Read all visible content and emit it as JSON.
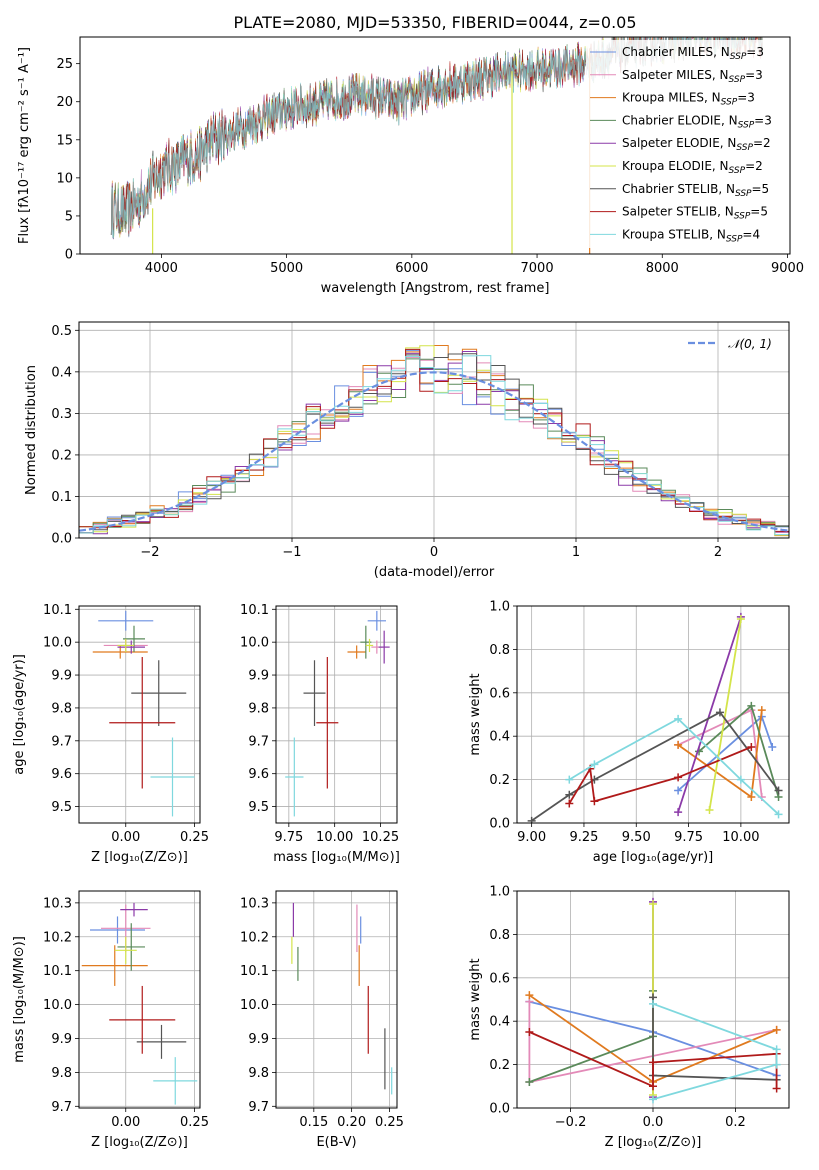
{
  "series_colors": {
    "chabrier_miles": "#6a8fe0",
    "salpeter_miles": "#e38ab8",
    "kroupa_miles": "#e07a1f",
    "chabrier_elodie": "#5a8a5a",
    "salpeter_elodie": "#8b3aa8",
    "kroupa_elodie": "#d4e44a",
    "chabrier_stelib": "#555555",
    "salpeter_stelib": "#b01a1a",
    "kroupa_stelib": "#7fd8de"
  },
  "chart_data": [
    {
      "id": "spectrum",
      "type": "line",
      "title": "PLATE=2080, MJD=53350, FIBERID=0044, z=0.05",
      "xlabel": "wavelength [Angstrom, rest frame]",
      "ylabel": "Flux [fλ10⁻¹⁷ erg cm⁻² s⁻¹ A⁻¹]",
      "xlim": [
        3350,
        9020
      ],
      "ylim": [
        0,
        28.5
      ],
      "xticks": [
        "4000",
        "5000",
        "6000",
        "7000",
        "8000",
        "9000"
      ],
      "yticks": [
        "0",
        "5",
        "10",
        "15",
        "20",
        "25"
      ],
      "grid": false,
      "legend_position": "top-right",
      "legend": [
        {
          "label": "Chabrier MILES, N",
          "sub": "SSP",
          "tail": "=3",
          "color": "#6a8fe0"
        },
        {
          "label": "Salpeter MILES, N",
          "sub": "SSP",
          "tail": "=3",
          "color": "#e38ab8"
        },
        {
          "label": "Kroupa MILES, N",
          "sub": "SSP",
          "tail": "=3",
          "color": "#e07a1f"
        },
        {
          "label": "Chabrier ELODIE, N",
          "sub": "SSP",
          "tail": "=3",
          "color": "#5a8a5a"
        },
        {
          "label": "Salpeter ELODIE, N",
          "sub": "SSP",
          "tail": "=2",
          "color": "#8b3aa8"
        },
        {
          "label": "Kroupa ELODIE, N",
          "sub": "SSP",
          "tail": "=2",
          "color": "#d4e44a"
        },
        {
          "label": "Chabrier STELIB, N",
          "sub": "SSP",
          "tail": "=5",
          "color": "#555555"
        },
        {
          "label": "Salpeter STELIB, N",
          "sub": "SSP",
          "tail": "=5",
          "color": "#b01a1a"
        },
        {
          "label": "Kroupa STELIB, N",
          "sub": "SSP",
          "tail": "=4",
          "color": "#7fd8de"
        }
      ],
      "continuum": {
        "x": [
          3600,
          3700,
          3800,
          3900,
          4000,
          4100,
          4200,
          4300,
          4400,
          4500,
          4700,
          5000,
          5300,
          5600,
          5900,
          6200,
          6500,
          6800,
          7100,
          7400,
          7700,
          8000,
          8300,
          8600,
          8800
        ],
        "y": [
          6,
          5.5,
          6.5,
          9,
          11,
          11.5,
          12.5,
          13,
          15,
          15.5,
          17,
          19,
          20,
          21,
          20,
          22,
          23,
          24,
          24.5,
          25,
          27,
          28,
          28.5,
          28.5,
          28.5
        ]
      }
    },
    {
      "id": "residuals",
      "type": "histogram",
      "xlabel": "(data-model)/error",
      "ylabel": "Normed distribution",
      "xlim": [
        -2.5,
        2.5
      ],
      "ylim": [
        0,
        0.52
      ],
      "xticks": [
        "−2",
        "−1",
        "0",
        "1",
        "2"
      ],
      "yticks": [
        "0.0",
        "0.1",
        "0.2",
        "0.3",
        "0.4",
        "0.5"
      ],
      "grid": true,
      "legend_position": "top-right",
      "reference_label": "𝒩(0, 1)",
      "reference_color": "#6a8fe0",
      "bin_width": 0.1
    },
    {
      "id": "age-vs-Z",
      "type": "errorbar",
      "xlabel": "Z [log₁₀(Z/Z⊙)]",
      "ylabel": "age  [log₁₀(age/yr)]",
      "xlim": [
        -0.17,
        0.27
      ],
      "ylim": [
        9.45,
        10.11
      ],
      "xticks": [
        "0.00",
        "0.25"
      ],
      "yticks": [
        "9.5",
        "9.6",
        "9.7",
        "9.8",
        "9.9",
        "10.0",
        "10.1"
      ],
      "grid": true,
      "points": [
        {
          "x": 0.0,
          "xe": 0.1,
          "y": 10.065,
          "ye": 0.03,
          "color": "#6a8fe0"
        },
        {
          "x": 0.0,
          "xe": 0.08,
          "y": 9.99,
          "ye": 0.02,
          "color": "#e38ab8"
        },
        {
          "x": -0.02,
          "xe": 0.1,
          "y": 9.97,
          "ye": 0.02,
          "color": "#e07a1f"
        },
        {
          "x": 0.03,
          "xe": 0.04,
          "y": 10.01,
          "ye": 0.04,
          "color": "#5a8a5a"
        },
        {
          "x": 0.02,
          "xe": 0.05,
          "y": 9.985,
          "ye": 0.02,
          "color": "#8b3aa8"
        },
        {
          "x": 0.0,
          "xe": 0.03,
          "y": 9.99,
          "ye": 0.02,
          "color": "#d4e44a"
        },
        {
          "x": 0.12,
          "xe": 0.1,
          "y": 9.845,
          "ye": 0.1,
          "color": "#555555"
        },
        {
          "x": 0.06,
          "xe": 0.12,
          "y": 9.755,
          "ye": 0.2,
          "color": "#b01a1a"
        },
        {
          "x": 0.17,
          "xe": 0.08,
          "y": 9.59,
          "ye": 0.12,
          "color": "#7fd8de"
        }
      ]
    },
    {
      "id": "age-vs-mass",
      "type": "errorbar",
      "xlabel": "mass [log₁₀(M/M⊙)]",
      "ylabel": "",
      "xlim": [
        9.68,
        10.34
      ],
      "ylim": [
        9.45,
        10.11
      ],
      "xticks": [
        "9.75",
        "10.00",
        "10.25"
      ],
      "yticks": [
        "9.5",
        "9.6",
        "9.7",
        "9.8",
        "9.9",
        "10.0",
        "10.1"
      ],
      "grid": true,
      "points": [
        {
          "x": 10.23,
          "xe": 0.05,
          "y": 10.065,
          "ye": 0.03,
          "color": "#6a8fe0"
        },
        {
          "x": 10.23,
          "xe": 0.03,
          "y": 9.985,
          "ye": 0.02,
          "color": "#e38ab8"
        },
        {
          "x": 10.12,
          "xe": 0.05,
          "y": 9.97,
          "ye": 0.02,
          "color": "#e07a1f"
        },
        {
          "x": 10.17,
          "xe": 0.03,
          "y": 10.0,
          "ye": 0.05,
          "color": "#5a8a5a"
        },
        {
          "x": 10.27,
          "xe": 0.03,
          "y": 9.985,
          "ye": 0.05,
          "color": "#8b3aa8"
        },
        {
          "x": 10.19,
          "xe": 0.02,
          "y": 9.99,
          "ye": 0.02,
          "color": "#d4e44a"
        },
        {
          "x": 9.89,
          "xe": 0.06,
          "y": 9.845,
          "ye": 0.1,
          "color": "#555555"
        },
        {
          "x": 9.96,
          "xe": 0.06,
          "y": 9.755,
          "ye": 0.2,
          "color": "#b01a1a"
        },
        {
          "x": 9.78,
          "xe": 0.05,
          "y": 9.59,
          "ye": 0.12,
          "color": "#7fd8de"
        }
      ]
    },
    {
      "id": "weight-vs-age",
      "type": "line",
      "xlabel": "age  [log₁₀(age/yr)]",
      "ylabel": "mass weight",
      "xlim": [
        8.93,
        10.23
      ],
      "ylim": [
        0,
        1
      ],
      "xticks": [
        "9.00",
        "9.25",
        "9.50",
        "9.75",
        "10.00"
      ],
      "yticks": [
        "0.0",
        "0.2",
        "0.4",
        "0.6",
        "0.8",
        "1.0"
      ],
      "grid": true,
      "series": [
        {
          "color": "#6a8fe0",
          "x": [
            9.7,
            10.1,
            10.15
          ],
          "y": [
            0.15,
            0.49,
            0.35
          ]
        },
        {
          "color": "#e38ab8",
          "x": [
            9.7,
            10.05,
            10.1
          ],
          "y": [
            0.36,
            0.52,
            0.12
          ]
        },
        {
          "color": "#e07a1f",
          "x": [
            9.7,
            10.05,
            10.1
          ],
          "y": [
            0.36,
            0.12,
            0.52
          ]
        },
        {
          "color": "#5a8a5a",
          "x": [
            9.8,
            10.05,
            10.18
          ],
          "y": [
            0.33,
            0.54,
            0.12
          ]
        },
        {
          "color": "#8b3aa8",
          "x": [
            9.7,
            10.0
          ],
          "y": [
            0.05,
            0.95
          ]
        },
        {
          "color": "#d4e44a",
          "x": [
            9.85,
            10.0
          ],
          "y": [
            0.06,
            0.94
          ]
        },
        {
          "color": "#555555",
          "x": [
            9.0,
            9.18,
            9.3,
            9.9,
            10.18
          ],
          "y": [
            0.01,
            0.13,
            0.2,
            0.51,
            0.15
          ]
        },
        {
          "color": "#b01a1a",
          "x": [
            9.18,
            9.28,
            9.3,
            9.7,
            10.05
          ],
          "y": [
            0.09,
            0.25,
            0.1,
            0.21,
            0.35
          ]
        },
        {
          "color": "#7fd8de",
          "x": [
            9.18,
            9.3,
            9.7,
            10.0,
            10.18
          ],
          "y": [
            0.2,
            0.27,
            0.48,
            0.2,
            0.04
          ]
        }
      ]
    },
    {
      "id": "mass-vs-Z",
      "type": "errorbar",
      "xlabel": "Z [log₁₀(Z/Z⊙)]",
      "ylabel": "mass [log₁₀(M/M⊙)]",
      "xlim": [
        -0.17,
        0.27
      ],
      "ylim": [
        9.695,
        10.335
      ],
      "xticks": [
        "0.00",
        "0.25"
      ],
      "yticks": [
        "9.7",
        "9.8",
        "9.9",
        "10.0",
        "10.1",
        "10.2",
        "10.3"
      ],
      "grid": true,
      "points": [
        {
          "x": -0.03,
          "xe": 0.1,
          "y": 10.22,
          "ye": 0.04,
          "color": "#6a8fe0"
        },
        {
          "x": 0.0,
          "xe": 0.09,
          "y": 10.225,
          "ye": 0.07,
          "color": "#e38ab8"
        },
        {
          "x": -0.04,
          "xe": 0.12,
          "y": 10.115,
          "ye": 0.06,
          "color": "#e07a1f"
        },
        {
          "x": 0.02,
          "xe": 0.05,
          "y": 10.17,
          "ye": 0.07,
          "color": "#5a8a5a"
        },
        {
          "x": 0.03,
          "xe": 0.05,
          "y": 10.28,
          "ye": 0.02,
          "color": "#8b3aa8"
        },
        {
          "x": 0.0,
          "xe": 0.04,
          "y": 10.16,
          "ye": 0.04,
          "color": "#d4e44a"
        },
        {
          "x": 0.13,
          "xe": 0.09,
          "y": 9.89,
          "ye": 0.05,
          "color": "#555555"
        },
        {
          "x": 0.06,
          "xe": 0.12,
          "y": 9.955,
          "ye": 0.1,
          "color": "#b01a1a"
        },
        {
          "x": 0.18,
          "xe": 0.08,
          "y": 9.775,
          "ye": 0.07,
          "color": "#7fd8de"
        }
      ]
    },
    {
      "id": "mass-vs-ebv",
      "type": "errorbar",
      "xlabel": "E(B-V)",
      "ylabel": "",
      "xlim": [
        0.1,
        0.26
      ],
      "ylim": [
        9.695,
        10.335
      ],
      "xticks": [
        "0.15",
        "0.20",
        "0.25"
      ],
      "yticks": [
        "9.7",
        "9.8",
        "9.9",
        "10.0",
        "10.1",
        "10.2",
        "10.3"
      ],
      "grid": true,
      "points": [
        {
          "x": 0.212,
          "xe": 0.0,
          "y": 10.22,
          "ye": 0.04,
          "color": "#6a8fe0"
        },
        {
          "x": 0.207,
          "xe": 0.0,
          "y": 10.225,
          "ye": 0.07,
          "color": "#e38ab8"
        },
        {
          "x": 0.21,
          "xe": 0.0,
          "y": 10.115,
          "ye": 0.06,
          "color": "#e07a1f"
        },
        {
          "x": 0.129,
          "xe": 0.0,
          "y": 10.12,
          "ye": 0.05,
          "color": "#5a8a5a"
        },
        {
          "x": 0.123,
          "xe": 0.0,
          "y": 10.25,
          "ye": 0.05,
          "color": "#8b3aa8"
        },
        {
          "x": 0.121,
          "xe": 0.0,
          "y": 10.16,
          "ye": 0.04,
          "color": "#d4e44a"
        },
        {
          "x": 0.244,
          "xe": 0.0,
          "y": 9.84,
          "ye": 0.09,
          "color": "#555555"
        },
        {
          "x": 0.222,
          "xe": 0.0,
          "y": 9.955,
          "ye": 0.1,
          "color": "#b01a1a"
        },
        {
          "x": 0.253,
          "xe": 0.0,
          "y": 9.775,
          "ye": 0.04,
          "color": "#7fd8de"
        }
      ]
    },
    {
      "id": "weight-vs-Z",
      "type": "line",
      "xlabel": "Z [log₁₀(Z/Z⊙)]",
      "ylabel": "mass weight",
      "xlim": [
        -0.33,
        0.33
      ],
      "ylim": [
        0,
        1
      ],
      "xticks": [
        "−0.2",
        "0.0",
        "0.2"
      ],
      "yticks": [
        "0.0",
        "0.2",
        "0.4",
        "0.6",
        "0.8",
        "1.0"
      ],
      "grid": true,
      "series": [
        {
          "color": "#6a8fe0",
          "x": [
            -0.3,
            0.0,
            0.3
          ],
          "y": [
            0.49,
            0.35,
            0.15
          ]
        },
        {
          "color": "#e38ab8",
          "x": [
            -0.3,
            -0.3,
            0.3
          ],
          "y": [
            0.49,
            0.12,
            0.36
          ]
        },
        {
          "color": "#e07a1f",
          "x": [
            -0.3,
            0.0,
            0.3
          ],
          "y": [
            0.52,
            0.12,
            0.36
          ]
        },
        {
          "color": "#5a8a5a",
          "x": [
            -0.3,
            0.0,
            0.0
          ],
          "y": [
            0.12,
            0.33,
            0.54
          ]
        },
        {
          "color": "#8b3aa8",
          "x": [
            0.0,
            0.0
          ],
          "y": [
            0.05,
            0.95
          ]
        },
        {
          "color": "#d4e44a",
          "x": [
            0.0,
            0.0
          ],
          "y": [
            0.06,
            0.94
          ]
        },
        {
          "color": "#555555",
          "x": [
            0.0,
            0.0,
            0.3
          ],
          "y": [
            0.51,
            0.15,
            0.13
          ]
        },
        {
          "color": "#b01a1a",
          "x": [
            -0.3,
            0.0,
            0.0,
            0.3,
            0.3
          ],
          "y": [
            0.35,
            0.1,
            0.21,
            0.25,
            0.09
          ]
        },
        {
          "color": "#7fd8de",
          "x": [
            0.0,
            0.3,
            0.3,
            0.0
          ],
          "y": [
            0.04,
            0.2,
            0.27,
            0.48
          ]
        }
      ]
    }
  ]
}
